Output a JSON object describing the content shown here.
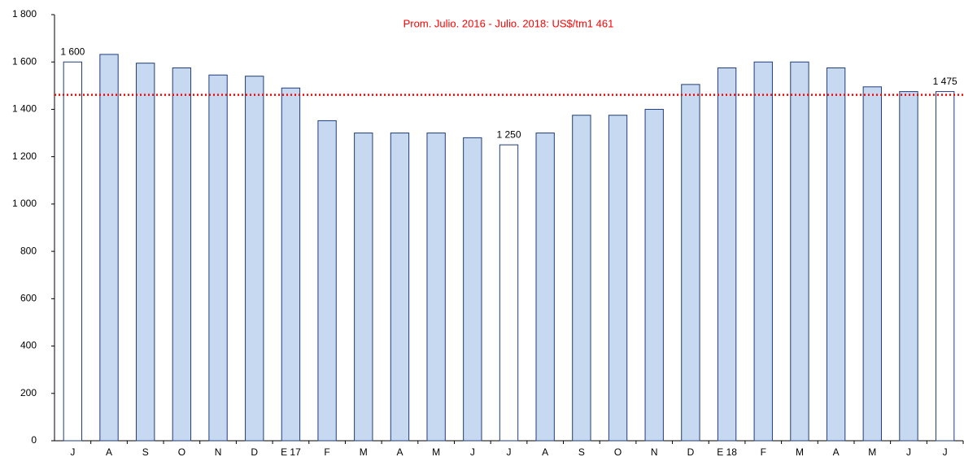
{
  "chart_data": {
    "type": "bar",
    "annotation": "Prom. Julio. 2016 - Julio. 2018: US$/tm1 461",
    "reference_line": {
      "value": 1461,
      "color": "#ff0000"
    },
    "categories": [
      "J",
      "A",
      "S",
      "O",
      "N",
      "D",
      "E 17",
      "F",
      "M",
      "A",
      "M",
      "J",
      "J",
      "A",
      "S",
      "O",
      "N",
      "D",
      "E 18",
      "F",
      "M",
      "A",
      "M",
      "J",
      "J"
    ],
    "values": [
      1600,
      1632,
      1595,
      1575,
      1545,
      1540,
      1490,
      1352,
      1300,
      1300,
      1300,
      1280,
      1250,
      1300,
      1375,
      1375,
      1400,
      1505,
      1575,
      1600,
      1600,
      1575,
      1495,
      1475,
      1475
    ],
    "value_labels": [
      "1 600",
      null,
      null,
      null,
      null,
      null,
      null,
      null,
      null,
      null,
      null,
      null,
      "1 250",
      null,
      null,
      null,
      null,
      null,
      null,
      null,
      null,
      null,
      null,
      null,
      "1 475"
    ],
    "colors": [
      "#ffffff",
      "#c6d9f1",
      "#c6d9f1",
      "#c6d9f1",
      "#c6d9f1",
      "#c6d9f1",
      "#c6d9f1",
      "#c6d9f1",
      "#c6d9f1",
      "#c6d9f1",
      "#c6d9f1",
      "#c6d9f1",
      "#ffffff",
      "#c6d9f1",
      "#c6d9f1",
      "#c6d9f1",
      "#c6d9f1",
      "#c6d9f1",
      "#c6d9f1",
      "#c6d9f1",
      "#c6d9f1",
      "#c6d9f1",
      "#c6d9f1",
      "#c6d9f1",
      "#ffffff"
    ],
    "edge_color": "#1f3d7a",
    "ylim": [
      0,
      1800
    ],
    "yticks": [
      0,
      200,
      400,
      600,
      800,
      {
        "value": 1000,
        "label": "1 000"
      },
      {
        "value": 1200,
        "label": "1 200"
      },
      {
        "value": 1400,
        "label": "1 400"
      },
      {
        "value": 1600,
        "label": "1 600"
      },
      {
        "value": 1800,
        "label": "1 800"
      }
    ]
  }
}
